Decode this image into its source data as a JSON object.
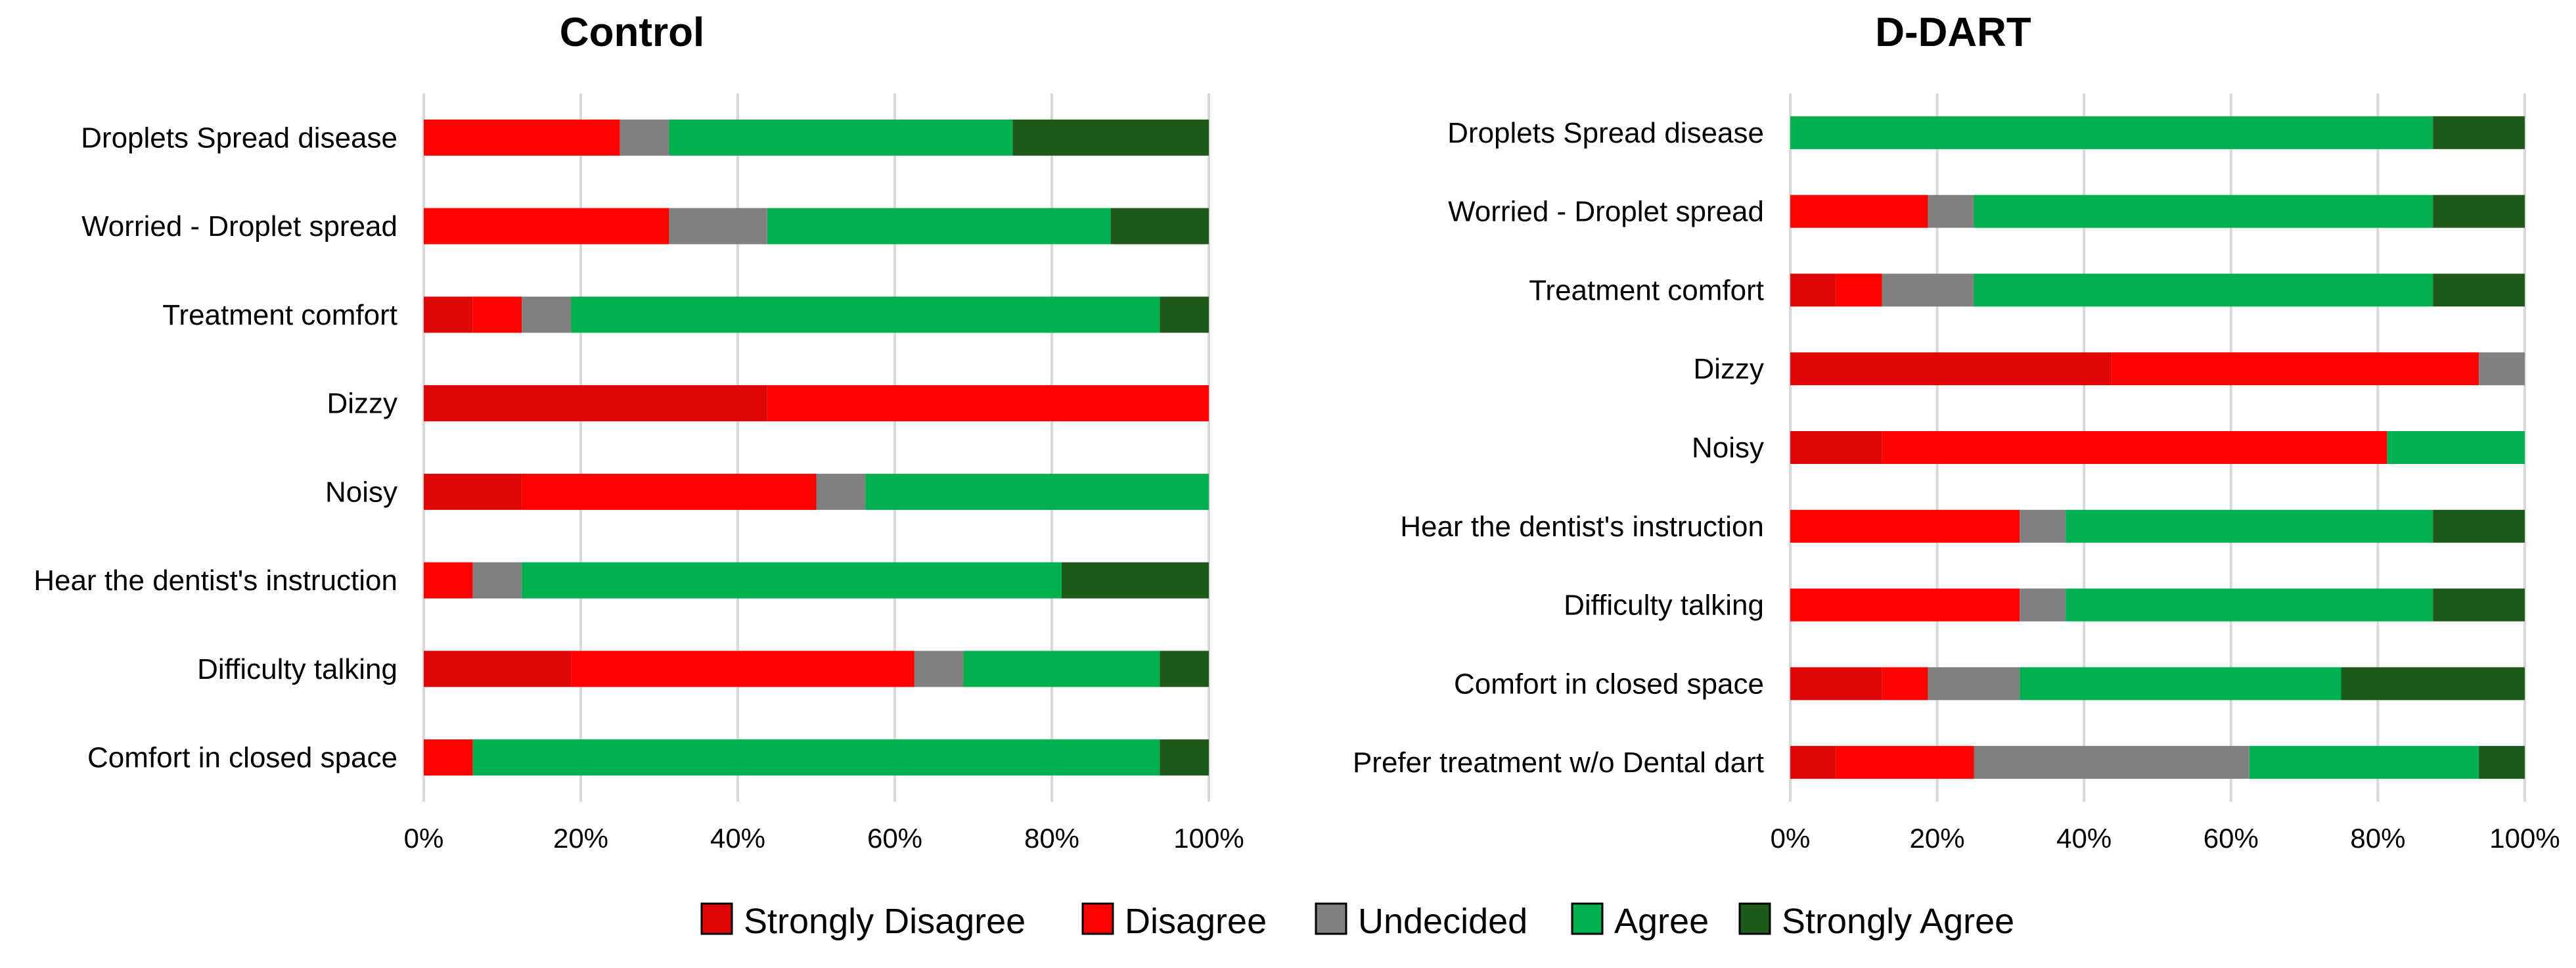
{
  "colors": {
    "Strongly Disagree": "#dd0707",
    "Disagree": "#ff0000",
    "Undecided": "#808080",
    "Agree": "#00b04f",
    "Strongly Agree": "#1f5a1b"
  },
  "legend": {
    "items": [
      "Strongly Disagree",
      "Disagree",
      "Undecided",
      "Agree",
      "Strongly Agree"
    ]
  },
  "chart_data": [
    {
      "type": "bar",
      "orientation": "horizontal-stacked-100",
      "title": "Control",
      "xlabel": "",
      "ylabel": "",
      "xlim": [
        0,
        100
      ],
      "x_ticks": [
        "0%",
        "20%",
        "40%",
        "60%",
        "80%",
        "100%"
      ],
      "grid": true,
      "categories": [
        "Droplets Spread disease",
        "Worried - Droplet spread",
        "Treatment comfort",
        "Dizzy",
        "Noisy",
        "Hear the dentist's instruction",
        "Difficulty talking",
        "Comfort in closed space"
      ],
      "series": [
        {
          "name": "Strongly Disagree",
          "values": [
            0,
            0,
            6.25,
            43.75,
            12.5,
            0,
            18.75,
            0
          ]
        },
        {
          "name": "Disagree",
          "values": [
            25,
            31.25,
            6.25,
            56.25,
            37.5,
            6.25,
            43.75,
            6.25
          ]
        },
        {
          "name": "Undecided",
          "values": [
            6.25,
            12.5,
            6.25,
            0,
            6.25,
            6.25,
            6.25,
            0
          ]
        },
        {
          "name": "Agree",
          "values": [
            43.75,
            43.75,
            75,
            0,
            43.75,
            68.75,
            25,
            87.5
          ]
        },
        {
          "name": "Strongly Agree",
          "values": [
            25,
            12.5,
            6.25,
            0,
            0,
            18.75,
            6.25,
            6.25
          ]
        }
      ]
    },
    {
      "type": "bar",
      "orientation": "horizontal-stacked-100",
      "title": "D-DART",
      "xlabel": "",
      "ylabel": "",
      "xlim": [
        0,
        100
      ],
      "x_ticks": [
        "0%",
        "20%",
        "40%",
        "60%",
        "80%",
        "100%"
      ],
      "grid": true,
      "categories": [
        "Droplets Spread disease",
        "Worried - Droplet spread",
        "Treatment comfort",
        "Dizzy",
        "Noisy",
        "Hear the dentist's instruction",
        "Difficulty talking",
        "Comfort in closed space",
        "Prefer treatment w/o Dental dart"
      ],
      "series": [
        {
          "name": "Strongly Disagree",
          "values": [
            0,
            0,
            6.25,
            43.75,
            12.5,
            0,
            0,
            12.5,
            6.25
          ]
        },
        {
          "name": "Disagree",
          "values": [
            0,
            18.75,
            6.25,
            50,
            68.75,
            31.25,
            31.25,
            6.25,
            18.75
          ]
        },
        {
          "name": "Undecided",
          "values": [
            0,
            6.25,
            12.5,
            6.25,
            0,
            6.25,
            6.25,
            12.5,
            37.5
          ]
        },
        {
          "name": "Agree",
          "values": [
            87.5,
            62.5,
            62.5,
            0,
            18.75,
            50,
            50,
            43.75,
            31.25
          ]
        },
        {
          "name": "Strongly Agree",
          "values": [
            12.5,
            12.5,
            12.5,
            0,
            0,
            12.5,
            12.5,
            25,
            6.25
          ]
        }
      ]
    }
  ]
}
